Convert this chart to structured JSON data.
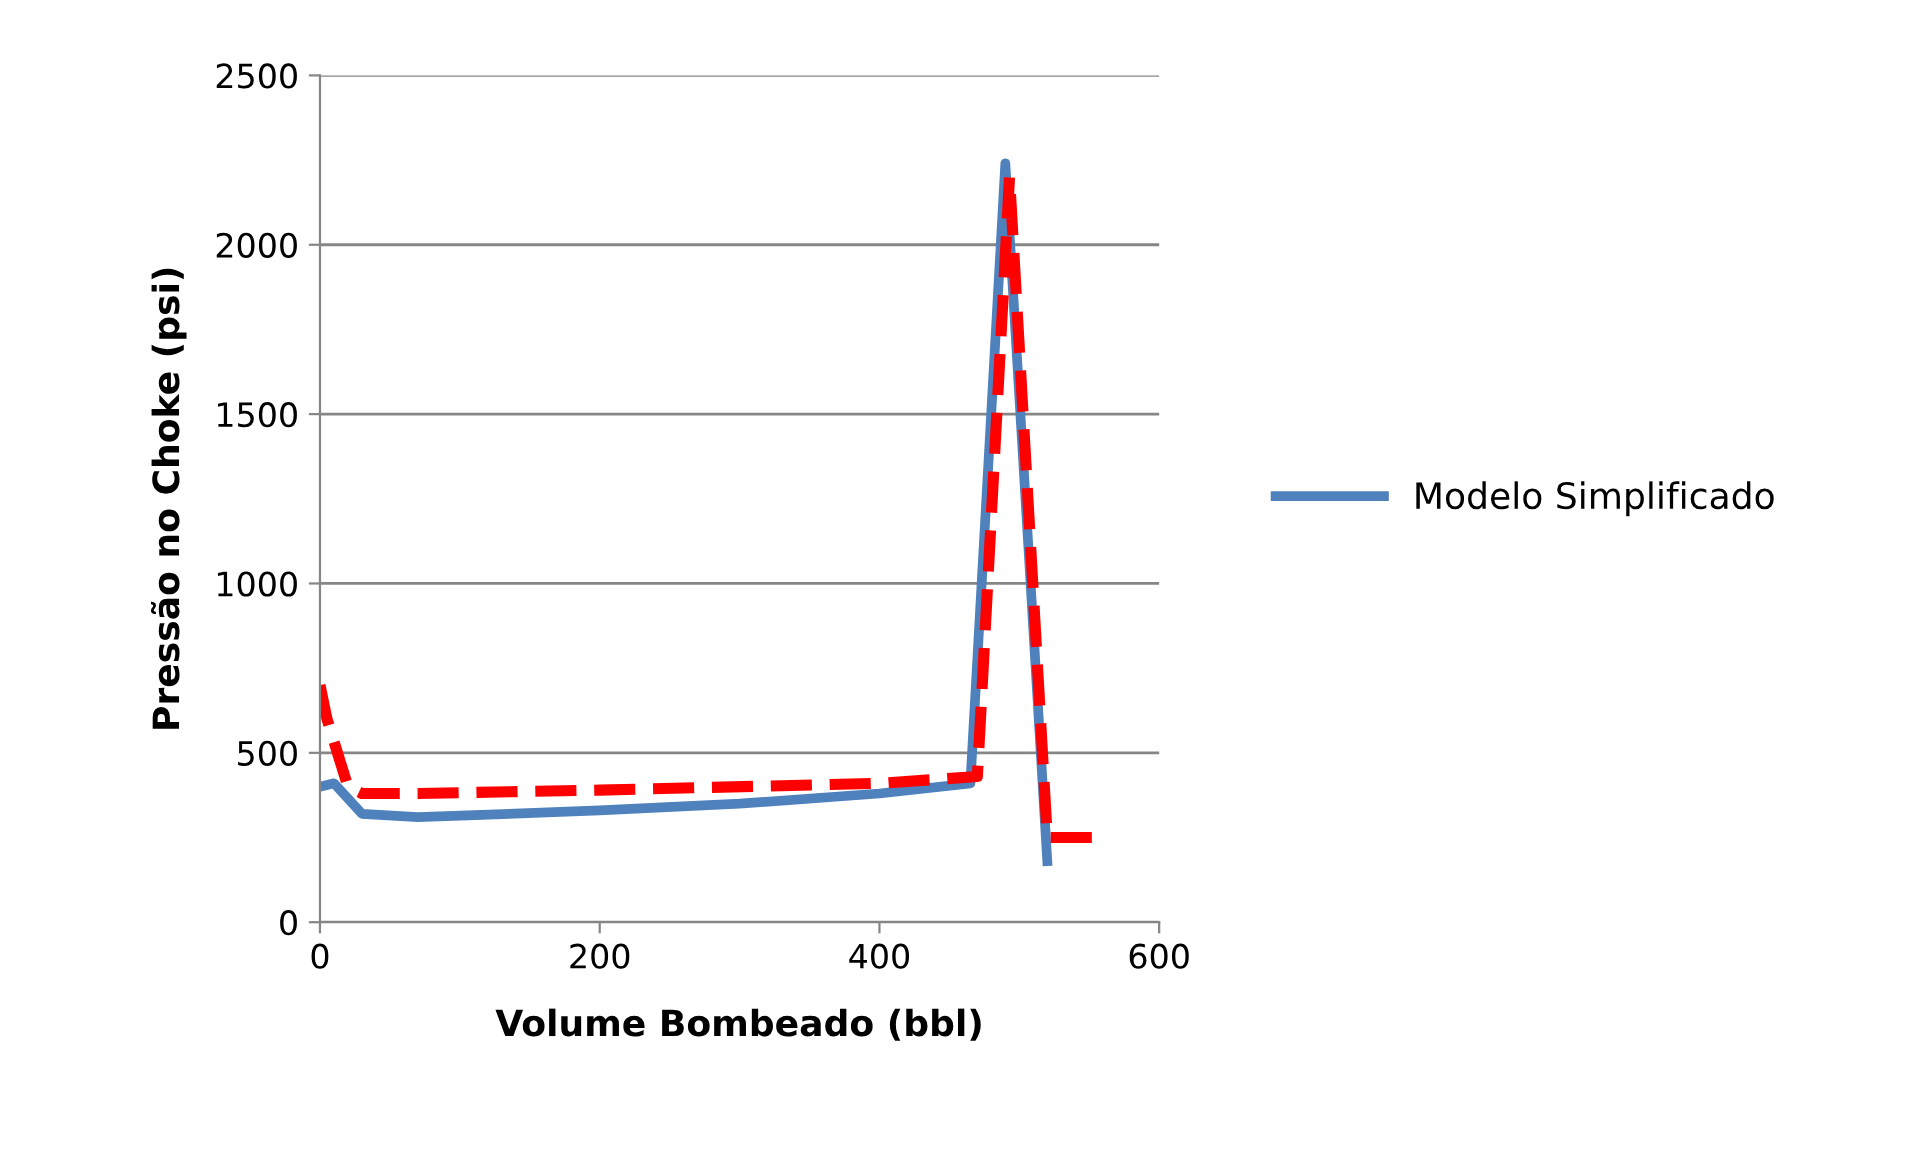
{
  "chart_data": {
    "type": "line",
    "xlabel": "Volume Bombeado (bbl)",
    "ylabel": "Pressão no Choke (psi)",
    "xlim": [
      0,
      600
    ],
    "xticks": [
      0,
      200,
      400,
      600
    ],
    "ylim": [
      0,
      2500
    ],
    "yticks": [
      0,
      500,
      1000,
      1500,
      2000,
      2500
    ],
    "grid": "y",
    "legend": "right",
    "series": [
      {
        "name": "Modelo Simplificado",
        "color": "#4f81bd",
        "line_style": "solid",
        "x": [
          0,
          10,
          30,
          70,
          200,
          300,
          400,
          465,
          490,
          520
        ],
        "values": [
          400,
          410,
          320,
          310,
          330,
          350,
          380,
          410,
          2240,
          180
        ]
      },
      {
        "color": "#ff0000",
        "line_style": "dashed",
        "x": [
          0,
          5,
          20,
          30,
          70,
          200,
          400,
          470,
          493,
          520,
          555
        ],
        "values": [
          700,
          600,
          400,
          380,
          380,
          390,
          410,
          430,
          2200,
          250,
          250
        ]
      }
    ]
  }
}
